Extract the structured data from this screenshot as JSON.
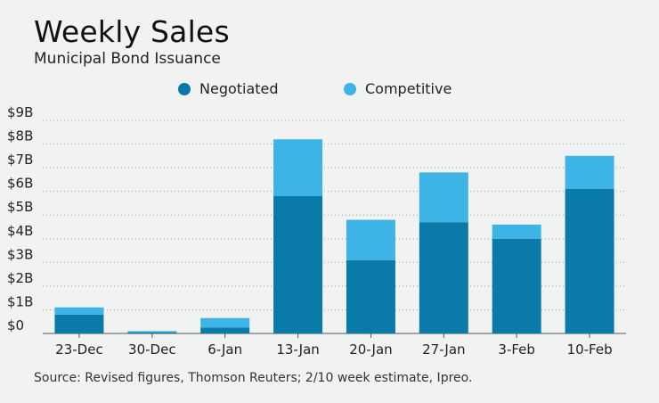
{
  "chart_data": {
    "type": "bar",
    "stacked": true,
    "title": "Weekly Sales",
    "subtitle": "Municipal Bond Issuance",
    "categories": [
      "23-Dec",
      "30-Dec",
      "6-Jan",
      "13-Jan",
      "20-Jan",
      "27-Jan",
      "3-Feb",
      "10-Feb"
    ],
    "series": [
      {
        "name": "Negotiated",
        "color": "#0a7aa8",
        "values": [
          0.8,
          0.05,
          0.25,
          5.8,
          3.1,
          4.7,
          4.0,
          6.1
        ]
      },
      {
        "name": "Competitive",
        "color": "#3db4e5",
        "values": [
          0.3,
          0.05,
          0.4,
          2.4,
          1.7,
          2.1,
          0.6,
          1.4
        ]
      }
    ],
    "yticks": [
      "$0",
      "$1B",
      "$2B",
      "$3B",
      "$4B",
      "$5B",
      "$6B",
      "$7B",
      "$8B",
      "$9B"
    ],
    "ylim": [
      0,
      9
    ],
    "grid": "horizontal, dotted",
    "legend_placement": "top",
    "source": "Source: Revised figures, Thomson Reuters; 2/10 week estimate, Ipreo."
  }
}
